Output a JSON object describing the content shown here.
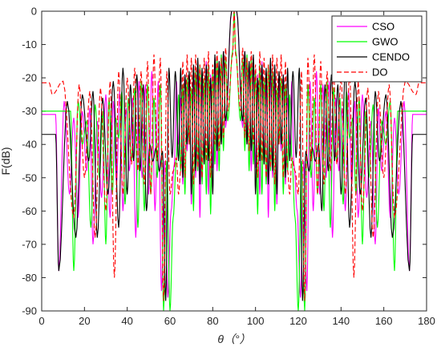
{
  "chart_data": {
    "type": "line",
    "title": "",
    "xlabel": "θ（°）",
    "ylabel": "F(dB)",
    "xlim": [
      0,
      180
    ],
    "ylim": [
      -90,
      0
    ],
    "xticks": [
      0,
      20,
      40,
      60,
      80,
      100,
      120,
      140,
      160,
      180
    ],
    "yticks": [
      0,
      -10,
      -20,
      -30,
      -40,
      -50,
      -60,
      -70,
      -80,
      -90
    ],
    "grid": false,
    "legend_position": "top-right",
    "series": [
      {
        "name": "CSO",
        "color": "#ff00ff",
        "dash": "solid",
        "edge": -31,
        "nulls": [
          8,
          13,
          17,
          21,
          24,
          28,
          32,
          35,
          38,
          41,
          44,
          47,
          50,
          53,
          56,
          59,
          62,
          64,
          66,
          68,
          70,
          72,
          74,
          76,
          78,
          80,
          82,
          84,
          86
        ],
        "null_depths": [
          -78,
          -55,
          -62,
          -48,
          -70,
          -56,
          -62,
          -52,
          -60,
          -48,
          -68,
          -50,
          -55,
          -60,
          -84,
          -86,
          -46,
          -40,
          -52,
          -42,
          -58,
          -50,
          -62,
          -45,
          -55,
          -47,
          -48,
          -40,
          -35
        ],
        "peaks": [
          -31,
          -27,
          -32,
          -30,
          -29,
          -33,
          -25,
          -27,
          -24,
          -29,
          -26,
          -21,
          -22,
          -18,
          -21,
          -45,
          -60,
          -21,
          -26,
          -19,
          -22,
          -19,
          -17,
          -21,
          -15,
          -19,
          -14,
          -15,
          -12,
          0
        ]
      },
      {
        "name": "GWO",
        "color": "#00ff00",
        "dash": "solid",
        "edge": -30,
        "nulls": [
          15,
          19,
          23,
          27,
          30,
          33,
          36,
          39,
          42,
          45,
          48,
          51,
          54,
          57,
          60,
          63,
          65,
          67,
          69,
          71,
          73,
          75,
          77,
          79,
          81,
          83,
          85,
          87
        ],
        "null_depths": [
          -78,
          -40,
          -65,
          -50,
          -70,
          -55,
          -38,
          -58,
          -45,
          -65,
          -60,
          -55,
          -50,
          -90,
          -90,
          -44,
          -48,
          -55,
          -40,
          -60,
          -48,
          -52,
          -55,
          -61,
          -46,
          -48,
          -42,
          -33
        ],
        "peaks": [
          -30,
          -27,
          -33,
          -28,
          -30,
          -26,
          -32,
          -24,
          -26,
          -23,
          -21,
          -22,
          -26,
          -22,
          -45,
          -62,
          -25,
          -22,
          -20,
          -23,
          -18,
          -16,
          -20,
          -16,
          -18,
          -14,
          -13,
          -14,
          -12,
          0
        ]
      },
      {
        "name": "CENDO",
        "color": "#000000",
        "dash": "solid",
        "edge": -37,
        "nulls": [
          8,
          16,
          22,
          26,
          31,
          36,
          40,
          43,
          46,
          49,
          52,
          55,
          58,
          61,
          64,
          66,
          68,
          70,
          72,
          74,
          76,
          78,
          80,
          82,
          84,
          86
        ],
        "null_depths": [
          -78,
          -68,
          -45,
          -68,
          -55,
          -65,
          -55,
          -45,
          -48,
          -60,
          -45,
          -48,
          -87,
          -44,
          -45,
          -50,
          -40,
          -55,
          -48,
          -52,
          -46,
          -45,
          -55,
          -42,
          -40,
          -33
        ],
        "peaks": [
          -37,
          -27,
          -25,
          -24,
          -26,
          -21,
          -17,
          -22,
          -19,
          -22,
          -40,
          -41,
          -42,
          -17,
          -18,
          -17,
          -19,
          -18,
          -16,
          -14,
          -17,
          -16,
          -20,
          -13,
          -15,
          -12,
          0
        ]
      },
      {
        "name": "DO",
        "color": "#ff0000",
        "dash": "dashed",
        "edge": -21.5,
        "nulls": [
          5,
          15,
          20,
          25,
          30,
          34,
          38,
          42,
          45,
          48,
          51,
          54,
          57,
          60,
          63,
          65,
          67,
          69,
          71,
          73,
          75,
          77,
          79,
          81,
          83,
          85,
          87
        ],
        "null_depths": [
          -25,
          -62,
          -50,
          -68,
          -60,
          -80,
          -55,
          -46,
          -48,
          -52,
          -55,
          -45,
          -87,
          -55,
          -44,
          -48,
          -50,
          -40,
          -52,
          -47,
          -50,
          -45,
          -50,
          -40,
          -42,
          -38,
          -30
        ],
        "peaks": [
          -21.5,
          -21,
          -22,
          -24,
          -23,
          -21,
          -18,
          -20,
          -17,
          -18,
          -15,
          -13,
          -14,
          -18,
          -48,
          -55,
          -15,
          -13,
          -14,
          -13,
          -16,
          -14,
          -12,
          -16,
          -12,
          -14,
          -11,
          -13,
          0
        ]
      }
    ]
  }
}
